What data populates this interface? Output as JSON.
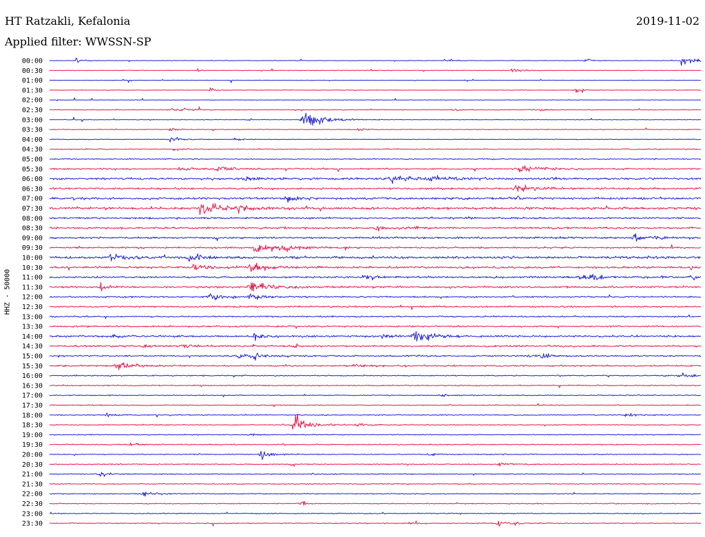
{
  "header": {
    "station": "HT Ratzakli, Kefalonia",
    "date": "2019-11-02",
    "filter_label": "Applied filter: WWSSN-SP"
  },
  "colors": {
    "even_trace": "#1f1fd6",
    "odd_trace": "#e8174a"
  },
  "chart_data": {
    "type": "line",
    "title": "HT Ratzakli, Kefalonia",
    "ylabel": "HHZ - 50000",
    "row_labels": [
      "00:00",
      "00:30",
      "01:00",
      "01:30",
      "02:00",
      "02:30",
      "03:00",
      "03:30",
      "04:00",
      "04:30",
      "05:00",
      "05:30",
      "06:00",
      "06:30",
      "07:00",
      "07:30",
      "08:00",
      "08:30",
      "09:00",
      "09:30",
      "10:00",
      "10:30",
      "11:00",
      "11:30",
      "12:00",
      "12:30",
      "13:00",
      "13:30",
      "14:00",
      "14:30",
      "15:00",
      "15:30",
      "16:00",
      "16:30",
      "17:00",
      "17:30",
      "18:00",
      "18:30",
      "19:00",
      "19:30",
      "20:00",
      "20:30",
      "21:00",
      "21:30",
      "22:00",
      "22:30",
      "23:00",
      "23:30"
    ],
    "minutes_per_row": 30,
    "noise_level": [
      0.05,
      0.06,
      0.04,
      0.05,
      0.05,
      0.07,
      0.06,
      0.07,
      0.07,
      0.1,
      0.1,
      0.15,
      0.22,
      0.2,
      0.24,
      0.26,
      0.2,
      0.2,
      0.2,
      0.18,
      0.25,
      0.22,
      0.2,
      0.2,
      0.16,
      0.16,
      0.14,
      0.15,
      0.2,
      0.18,
      0.16,
      0.16,
      0.12,
      0.12,
      0.1,
      0.1,
      0.1,
      0.1,
      0.1,
      0.1,
      0.1,
      0.1,
      0.1,
      0.1,
      0.1,
      0.1,
      0.1,
      0.1
    ],
    "events": [
      {
        "row": 0,
        "minute": 1.2,
        "amp": 0.8,
        "dur": 0.6
      },
      {
        "row": 0,
        "minute": 18.4,
        "amp": 0.6,
        "dur": 0.6
      },
      {
        "row": 0,
        "minute": 24.7,
        "amp": 1.2,
        "dur": 0.4
      },
      {
        "row": 0,
        "minute": 29.1,
        "amp": 1.6,
        "dur": 1.2
      },
      {
        "row": 1,
        "minute": 6.8,
        "amp": 0.5,
        "dur": 0.5
      },
      {
        "row": 1,
        "minute": 21.3,
        "amp": 0.7,
        "dur": 1.0
      },
      {
        "row": 3,
        "minute": 7.4,
        "amp": 0.6,
        "dur": 0.5
      },
      {
        "row": 3,
        "minute": 24.2,
        "amp": 0.9,
        "dur": 0.6
      },
      {
        "row": 5,
        "minute": 5.5,
        "amp": 0.7,
        "dur": 1.5
      },
      {
        "row": 5,
        "minute": 18.6,
        "amp": 0.6,
        "dur": 0.6
      },
      {
        "row": 5,
        "minute": 22.2,
        "amp": 0.5,
        "dur": 1.0
      },
      {
        "row": 6,
        "minute": 9.1,
        "amp": 0.4,
        "dur": 0.4
      },
      {
        "row": 6,
        "minute": 11.6,
        "amp": 3.2,
        "dur": 1.8
      },
      {
        "row": 7,
        "minute": 5.5,
        "amp": 0.6,
        "dur": 0.8
      },
      {
        "row": 7,
        "minute": 14.2,
        "amp": 0.5,
        "dur": 0.6
      },
      {
        "row": 8,
        "minute": 5.5,
        "amp": 0.9,
        "dur": 0.8
      },
      {
        "row": 8,
        "minute": 8.5,
        "amp": 0.6,
        "dur": 0.6
      },
      {
        "row": 9,
        "minute": 5.8,
        "amp": 0.5,
        "dur": 0.6
      },
      {
        "row": 11,
        "minute": 5.9,
        "amp": 0.8,
        "dur": 1.2
      },
      {
        "row": 11,
        "minute": 7.6,
        "amp": 1.1,
        "dur": 1.6
      },
      {
        "row": 11,
        "minute": 21.6,
        "amp": 1.2,
        "dur": 1.8
      },
      {
        "row": 12,
        "minute": 9.0,
        "amp": 0.7,
        "dur": 1.4
      },
      {
        "row": 12,
        "minute": 15.6,
        "amp": 1.2,
        "dur": 2.0
      },
      {
        "row": 12,
        "minute": 17.4,
        "amp": 1.0,
        "dur": 1.4
      },
      {
        "row": 12,
        "minute": 23.1,
        "amp": 0.5,
        "dur": 0.6
      },
      {
        "row": 13,
        "minute": 21.4,
        "amp": 1.3,
        "dur": 2.0
      },
      {
        "row": 14,
        "minute": 10.8,
        "amp": 1.1,
        "dur": 1.2
      },
      {
        "row": 14,
        "minute": 21.5,
        "amp": 0.7,
        "dur": 1.0
      },
      {
        "row": 15,
        "minute": 6.9,
        "amp": 2.5,
        "dur": 1.4
      },
      {
        "row": 15,
        "minute": 8.7,
        "amp": 1.0,
        "dur": 1.2
      },
      {
        "row": 17,
        "minute": 15.0,
        "amp": 1.0,
        "dur": 1.0
      },
      {
        "row": 17,
        "minute": 16.4,
        "amp": 0.8,
        "dur": 1.2
      },
      {
        "row": 18,
        "minute": 26.9,
        "amp": 1.4,
        "dur": 1.6
      },
      {
        "row": 19,
        "minute": 9.4,
        "amp": 1.8,
        "dur": 2.2
      },
      {
        "row": 19,
        "minute": 10.8,
        "amp": 0.7,
        "dur": 1.2
      },
      {
        "row": 20,
        "minute": 2.8,
        "amp": 1.0,
        "dur": 2.2
      },
      {
        "row": 20,
        "minute": 6.4,
        "amp": 1.2,
        "dur": 1.4
      },
      {
        "row": 21,
        "minute": 6.6,
        "amp": 0.9,
        "dur": 1.8
      },
      {
        "row": 21,
        "minute": 9.2,
        "amp": 2.0,
        "dur": 1.6
      },
      {
        "row": 21,
        "minute": 29.5,
        "amp": 0.8,
        "dur": 0.8
      },
      {
        "row": 22,
        "minute": 14.5,
        "amp": 1.0,
        "dur": 1.2
      },
      {
        "row": 22,
        "minute": 24.4,
        "amp": 1.2,
        "dur": 1.8
      },
      {
        "row": 22,
        "minute": 29.5,
        "amp": 0.8,
        "dur": 0.8
      },
      {
        "row": 23,
        "minute": 2.3,
        "amp": 0.9,
        "dur": 1.2
      },
      {
        "row": 23,
        "minute": 9.2,
        "amp": 3.0,
        "dur": 1.6
      },
      {
        "row": 24,
        "minute": 7.3,
        "amp": 1.3,
        "dur": 1.6
      },
      {
        "row": 24,
        "minute": 9.2,
        "amp": 1.2,
        "dur": 1.0
      },
      {
        "row": 28,
        "minute": 2.8,
        "amp": 0.8,
        "dur": 0.8
      },
      {
        "row": 28,
        "minute": 9.4,
        "amp": 1.2,
        "dur": 1.4
      },
      {
        "row": 28,
        "minute": 15.3,
        "amp": 0.6,
        "dur": 1.2
      },
      {
        "row": 28,
        "minute": 16.7,
        "amp": 1.5,
        "dur": 2.2
      },
      {
        "row": 29,
        "minute": 4.3,
        "amp": 0.6,
        "dur": 0.6
      },
      {
        "row": 29,
        "minute": 6.2,
        "amp": 0.6,
        "dur": 0.6
      },
      {
        "row": 29,
        "minute": 11.3,
        "amp": 0.5,
        "dur": 0.6
      },
      {
        "row": 30,
        "minute": 8.7,
        "amp": 0.8,
        "dur": 1.2
      },
      {
        "row": 30,
        "minute": 9.4,
        "amp": 1.0,
        "dur": 1.2
      },
      {
        "row": 30,
        "minute": 22.0,
        "amp": 0.6,
        "dur": 1.2
      },
      {
        "row": 30,
        "minute": 22.6,
        "amp": 0.7,
        "dur": 1.0
      },
      {
        "row": 31,
        "minute": 3.0,
        "amp": 1.2,
        "dur": 1.6
      },
      {
        "row": 31,
        "minute": 14.0,
        "amp": 0.6,
        "dur": 1.2
      },
      {
        "row": 32,
        "minute": 29.0,
        "amp": 0.8,
        "dur": 1.2
      },
      {
        "row": 34,
        "minute": 18.0,
        "amp": 0.6,
        "dur": 0.6
      },
      {
        "row": 36,
        "minute": 2.6,
        "amp": 0.7,
        "dur": 0.8
      },
      {
        "row": 36,
        "minute": 26.5,
        "amp": 0.7,
        "dur": 1.0
      },
      {
        "row": 37,
        "minute": 11.2,
        "amp": 3.2,
        "dur": 1.4
      },
      {
        "row": 37,
        "minute": 14.1,
        "amp": 1.0,
        "dur": 0.8
      },
      {
        "row": 38,
        "minute": 9.2,
        "amp": 0.5,
        "dur": 0.6
      },
      {
        "row": 39,
        "minute": 3.7,
        "amp": 0.6,
        "dur": 0.8
      },
      {
        "row": 40,
        "minute": 9.7,
        "amp": 1.3,
        "dur": 1.2
      },
      {
        "row": 40,
        "minute": 17.4,
        "amp": 0.6,
        "dur": 0.8
      },
      {
        "row": 41,
        "minute": 20.7,
        "amp": 1.4,
        "dur": 0.8
      },
      {
        "row": 42,
        "minute": 2.3,
        "amp": 0.8,
        "dur": 1.0
      },
      {
        "row": 44,
        "minute": 4.3,
        "amp": 1.1,
        "dur": 1.0
      },
      {
        "row": 45,
        "minute": 11.6,
        "amp": 1.0,
        "dur": 0.5
      },
      {
        "row": 47,
        "minute": 16.5,
        "amp": 0.6,
        "dur": 0.6
      },
      {
        "row": 47,
        "minute": 20.6,
        "amp": 2.0,
        "dur": 1.0
      }
    ]
  }
}
